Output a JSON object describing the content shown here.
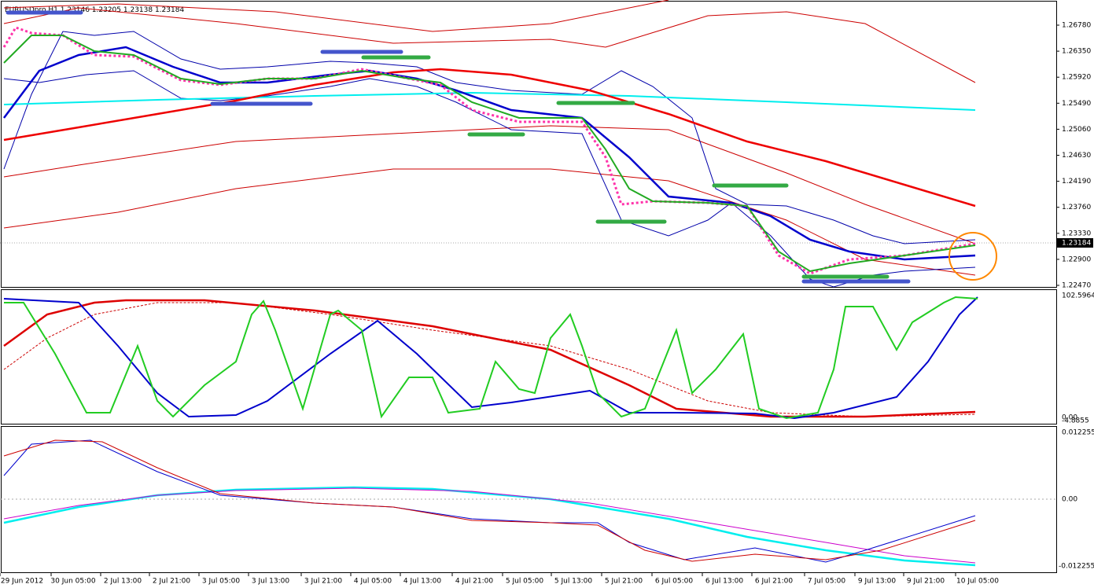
{
  "header": {
    "symbol": "EURUSDpro,H1",
    "ohlc": "1.23146 1.23205 1.23138 1.23184"
  },
  "price_axis": [
    "1.26780",
    "1.26350",
    "1.25920",
    "1.25490",
    "1.25060",
    "1.24630",
    "1.24190",
    "1.23760",
    "1.23330",
    "1.22900",
    "1.22470"
  ],
  "current_price": "1.23184",
  "oscillator_axis": {
    "top": "102.5964",
    "zero": "0.00",
    "bottom": "-4.8855"
  },
  "macd_axis": {
    "top": "0.012255",
    "zero": "0.00",
    "bottom": "-0.012255"
  },
  "time_axis": [
    "29 Jun 2012",
    "30 Jun 05:00",
    "2 Jul 13:00",
    "2 Jul 21:00",
    "3 Jul 05:00",
    "3 Jul 13:00",
    "3 Jul 21:00",
    "4 Jul 05:00",
    "4 Jul 13:00",
    "4 Jul 21:00",
    "5 Jul 05:00",
    "5 Jul 13:00",
    "5 Jul 21:00",
    "6 Jul 05:00",
    "6 Jul 13:00",
    "6 Jul 21:00",
    "7 Jul 05:00",
    "9 Jul 13:00",
    "9 Jul 21:00",
    "10 Jul 05:00"
  ]
}
